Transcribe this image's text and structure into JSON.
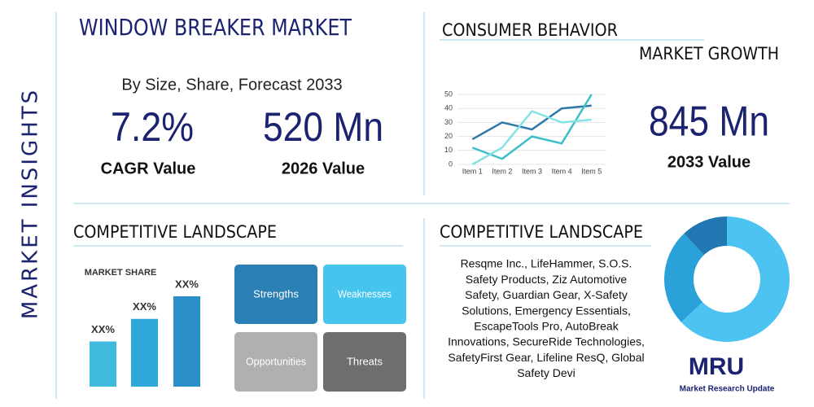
{
  "header": {
    "side_title": "MARKET INSIGHTS",
    "title": "WINDOW BREAKER MARKET",
    "subtitle": "By Size, Share, Forecast 2033"
  },
  "stats": [
    {
      "value": "7.2%",
      "label": "CAGR Value"
    },
    {
      "value": "520 Mn",
      "label": "2026 Value"
    },
    {
      "value": "845 Mn",
      "label": "2033 Value"
    }
  ],
  "consumer": {
    "title": "CONSUMER BEHAVIOR",
    "subtitle": "MARKET GROWTH"
  },
  "chart_data": [
    {
      "type": "line",
      "categories": [
        "Item 1",
        "Item 2",
        "Item 3",
        "Item 4",
        "Item 5"
      ],
      "series": [
        {
          "color": "#2e77a8",
          "values": [
            18,
            30,
            25,
            40,
            42
          ]
        },
        {
          "color": "#3cbfc9",
          "values": [
            12,
            4,
            20,
            15,
            50
          ]
        },
        {
          "color": "#84e3e3",
          "values": [
            0,
            12,
            38,
            30,
            32
          ]
        }
      ],
      "ylim": [
        0,
        50
      ],
      "yticks": [
        0,
        10,
        20,
        30,
        40,
        50
      ]
    },
    {
      "type": "bar",
      "title": "MARKET SHARE",
      "categories": [
        null,
        null,
        null
      ],
      "values": [
        50,
        75,
        100
      ],
      "value_labels": [
        "XX%",
        "XX%",
        "XX%"
      ],
      "colors": [
        "#3fbbdd",
        "#2ea8da",
        "#2a8ec9"
      ]
    },
    {
      "type": "pie",
      "values": [
        63,
        25,
        12
      ],
      "colors": [
        "#4cc3f1",
        "#2aa2d9",
        "#2077b2"
      ]
    }
  ],
  "swot": {
    "title": "COMPETITIVE LANDSCAPE",
    "items": [
      "Strengths",
      "Weaknesses",
      "Opportunities",
      "Threats"
    ]
  },
  "competitors": {
    "title": "COMPETITIVE LANDSCAPE",
    "lines": [
      "Resqme Inc., LifeHammer, S.O.S.",
      "Safety Products, Ziz Automotive",
      "Safety, Guardian Gear, X-Safety",
      "Solutions, Emergency Essentials,",
      "EscapeTools Pro, AutoBreak",
      "Innovations, SecureRide Technologies,",
      "SafetyFirst Gear, Lifeline ResQ, Global",
      "Safety Devi"
    ]
  },
  "logo": {
    "mark": "MRU",
    "name": "Market Research Update"
  }
}
